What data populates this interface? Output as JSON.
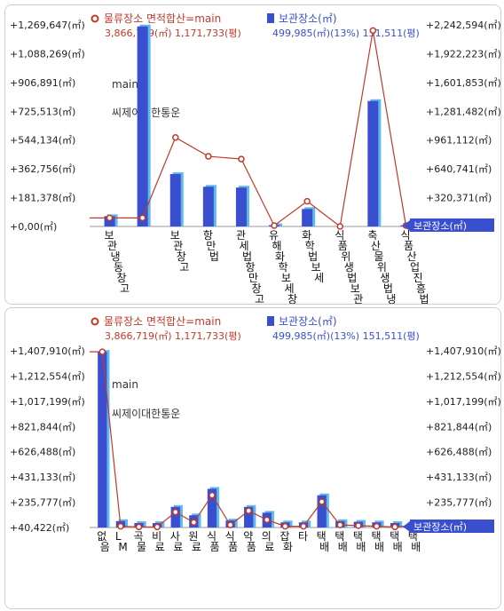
{
  "chart_data": [
    {
      "type": "bar",
      "legend": {
        "line_label": "물류장소 면적합산=main",
        "line_sub": "3,866,719(㎡)  1,171,733(평)",
        "bar_label": "보관장소(㎡)",
        "bar_sub": "499,985(㎡)(13%)  151,511(평)"
      },
      "annotations": [
        "main",
        "씨제이대한통운"
      ],
      "marker_label": "보관장소(㎡)",
      "left_ticks": [
        "+1,269,647(㎡)",
        "+1,088,269(㎡)",
        "+906,891(㎡)",
        "+725,513(㎡)",
        "+544,134(㎡)",
        "+362,756(㎡)",
        "+181,378(㎡)",
        "+0,00(㎡)"
      ],
      "right_ticks": [
        "+2,242,594(㎡)",
        "+1,922,223(㎡)",
        "+1,601,853(㎡)",
        "+1,281,482(㎡)",
        "+961,112(㎡)",
        "+640,741(㎡)",
        "+320,371(㎡)",
        "+0,00(㎡)"
      ],
      "ylim_left": [
        0,
        1269647
      ],
      "ylim_right": [
        0,
        2242594
      ],
      "categories": [
        "보관냉동창고",
        "",
        "보관창고",
        "항만법",
        "관세법항만창고",
        "유해화학보세창고",
        "화학법보세",
        "식품위생법보관",
        "축산물위생법냉동냉장",
        "식품산업진흥법축산물"
      ],
      "series": [
        {
          "name": "보관장소(㎡)",
          "values": [
            65000,
            1260000,
            330000,
            250000,
            245000,
            8000,
            110000,
            0,
            790000,
            7000
          ]
        },
        {
          "name": "물류장소 면적합산=main",
          "values": [
            95000,
            95000,
            990000,
            780000,
            750000,
            10000,
            280000,
            0,
            2180000,
            10000
          ]
        }
      ]
    },
    {
      "type": "bar",
      "legend": {
        "line_label": "물류장소 면적합산=main",
        "line_sub": "3,866,719(㎡)  1,171,733(평)",
        "bar_label": "보관장소(㎡)",
        "bar_sub": "499,985(㎡)(13%)  151,511(평)"
      },
      "annotations": [
        "main",
        "씨제이대한통운"
      ],
      "marker_label": "보관장소(㎡)",
      "left_ticks": [
        "+1,407,910(㎡)",
        "+1,212,554(㎡)",
        "+1,017,199(㎡)",
        "+821,844(㎡)",
        "+626,488(㎡)",
        "+431,133(㎡)",
        "+235,777(㎡)",
        "+40,422(㎡)"
      ],
      "right_ticks": [
        "+1,407,910(㎡)",
        "+1,212,554(㎡)",
        "+1,017,199(㎡)",
        "+821,844(㎡)",
        "+626,488(㎡)",
        "+431,133(㎡)",
        "+235,777(㎡)",
        "+40,422(㎡)"
      ],
      "ylim_left": [
        40422,
        1407910
      ],
      "ylim_right": [
        40422,
        1407910
      ],
      "categories": [
        "없음",
        "LM",
        "곡물",
        "비료",
        "사료",
        "원료",
        "식품",
        "식품",
        "약품",
        "의료",
        "잡화",
        "타",
        "택배",
        "택배",
        "택배",
        "택배",
        "택배",
        "택배"
      ],
      "series": [
        {
          "name": "보관장소(㎡)",
          "values": [
            1400000,
            90000,
            75000,
            75000,
            200000,
            135000,
            340000,
            95000,
            200000,
            155000,
            80000,
            80000,
            290000,
            90000,
            85000,
            80000,
            75000,
            85000
          ]
        },
        {
          "name": "물류장소 면적합산=main",
          "values": [
            1400000,
            50000,
            45000,
            45000,
            160000,
            80000,
            290000,
            60000,
            170000,
            100000,
            50000,
            50000,
            240000,
            60000,
            55000,
            50000,
            45000,
            55000
          ]
        }
      ]
    }
  ]
}
